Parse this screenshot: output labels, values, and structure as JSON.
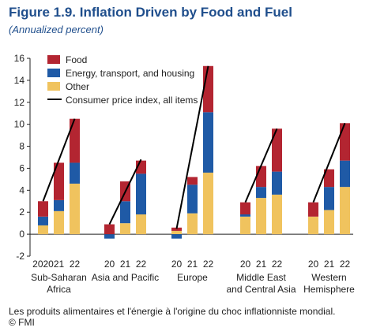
{
  "title": "Figure 1.9.  Inflation Driven by Food and Fuel",
  "subtitle": "(Annualized percent)",
  "caption": "Les produits alimentaires et l'énergie à l'origine du choc inflationniste mondial. © FMI",
  "colors": {
    "food": "#b32531",
    "energy": "#1f5aa6",
    "other": "#f0c35e",
    "cpi": "#000000",
    "title": "#1f4e8c"
  },
  "chart_data": {
    "type": "bar",
    "stacked": true,
    "ylim": [
      -2,
      16
    ],
    "yticks": [
      -2,
      0,
      2,
      4,
      6,
      8,
      10,
      12,
      14,
      16
    ],
    "legend": "top-left",
    "groups": [
      {
        "name": [
          "Sub-Saharan",
          "Africa"
        ],
        "years": [
          "2020",
          "21",
          "22"
        ],
        "other": [
          0.8,
          2.1,
          4.6
        ],
        "energy": [
          0.8,
          1.0,
          1.9
        ],
        "food": [
          1.4,
          3.4,
          4.0
        ],
        "cpi": [
          3.0,
          6.5,
          10.5
        ]
      },
      {
        "name": [
          "Asia and Pacific"
        ],
        "years": [
          "20",
          "21",
          "22"
        ],
        "other": [
          0.0,
          1.0,
          1.8
        ],
        "energy": [
          -0.4,
          2.0,
          3.7
        ],
        "food": [
          0.9,
          1.8,
          1.2
        ],
        "cpi": [
          0.9,
          4.9,
          6.8
        ]
      },
      {
        "name": [
          "Europe"
        ],
        "years": [
          "20",
          "21",
          "22"
        ],
        "other": [
          0.3,
          1.9,
          5.6
        ],
        "energy": [
          -0.4,
          2.6,
          5.5
        ],
        "food": [
          0.3,
          0.7,
          4.2
        ],
        "cpi": [
          0.5,
          5.2,
          15.3
        ]
      },
      {
        "name": [
          "Middle East",
          "and Central Asia"
        ],
        "years": [
          "20",
          "21",
          "22"
        ],
        "other": [
          1.6,
          3.3,
          3.6
        ],
        "energy": [
          0.2,
          1.0,
          2.1
        ],
        "food": [
          1.1,
          1.9,
          3.9
        ],
        "cpi": [
          2.9,
          6.2,
          9.6
        ]
      },
      {
        "name": [
          "Western",
          "Hemisphere"
        ],
        "years": [
          "20",
          "21",
          "22"
        ],
        "other": [
          1.6,
          2.2,
          4.3
        ],
        "energy": [
          0.0,
          2.1,
          2.4
        ],
        "food": [
          1.3,
          1.6,
          3.4
        ],
        "cpi": [
          2.9,
          5.9,
          10.1
        ]
      }
    ],
    "series": [
      {
        "name": "Food",
        "key": "food"
      },
      {
        "name": "Energy, transport, and housing",
        "key": "energy"
      },
      {
        "name": "Other",
        "key": "other"
      },
      {
        "name": "Consumer price index, all items",
        "key": "cpi"
      }
    ]
  }
}
